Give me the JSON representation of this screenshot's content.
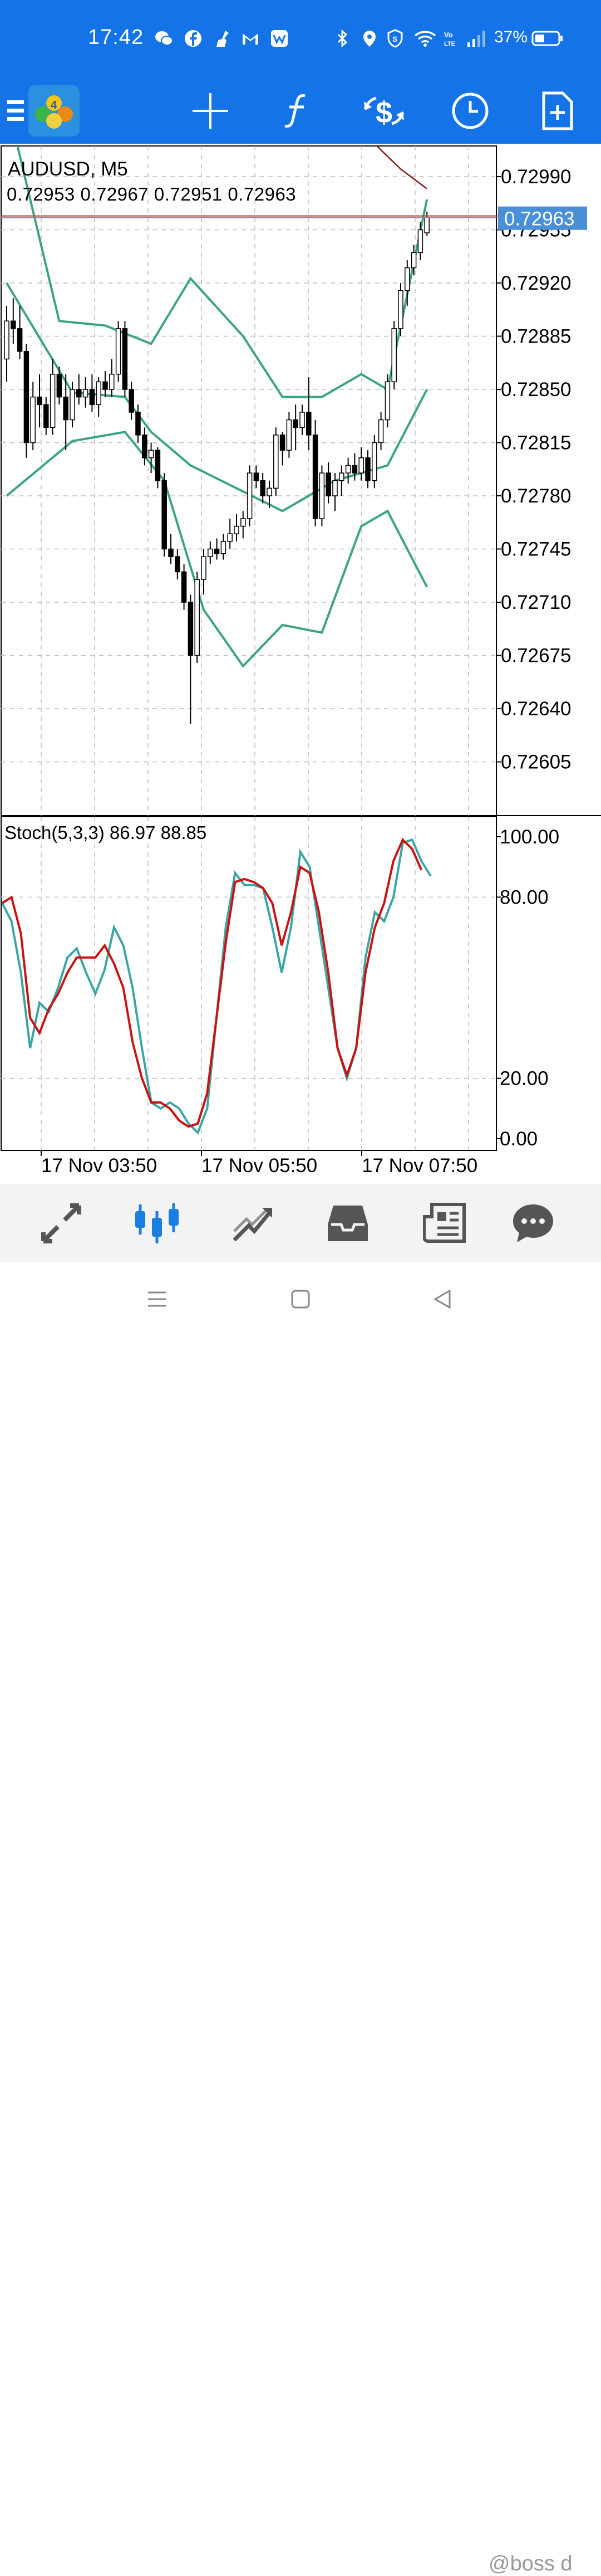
{
  "status_bar": {
    "time": "17:42",
    "battery": "37%",
    "left_icons": [
      "wechat-icon",
      "facebook-icon",
      "broom-icon",
      "gmail-icon",
      "app-w-icon"
    ],
    "right_icons": [
      "bluetooth-icon",
      "location-icon",
      "vpn-shield-icon",
      "wifi-icon",
      "volte-icon",
      "signal-icon",
      "battery-icon"
    ]
  },
  "toolbar": {
    "items": [
      "menu-icon",
      "app-logo-icon",
      "crosshair-icon",
      "indicators-icon",
      "symbol-change-icon",
      "timeframe-icon",
      "new-order-icon"
    ]
  },
  "chart": {
    "symbol_title": "AUDUSD, M5",
    "ohlc_text": "0.72953 0.72967 0.72951 0.72963",
    "current_price": "0.72963",
    "price_ticks": [
      "0.72990",
      "0.72955",
      "0.72920",
      "0.72885",
      "0.72850",
      "0.72815",
      "0.72780",
      "0.72745",
      "0.72710",
      "0.72675",
      "0.72640",
      "0.72605"
    ],
    "stoch_label": "Stoch(5,3,3) 86.97 88.85",
    "stoch_ticks": [
      "100.00",
      "80.00",
      "20.00",
      "0.00"
    ],
    "time_labels": [
      "17 Nov 03:50",
      "17 Nov 05:50",
      "17 Nov 07:50"
    ],
    "colors": {
      "bull": "#ffffff",
      "bear": "#000000",
      "bands": "#3aa57a",
      "ma": "#8b1a1a",
      "stoch_main": "#3aa5a5",
      "stoch_signal": "#cc1111",
      "price_tag": "#4a90d9"
    }
  },
  "chart_data": {
    "type": "candlestick",
    "title": "AUDUSD, M5",
    "ylim": [
      0.72575,
      0.7302
    ],
    "candles": [
      [
        0.7287,
        0.72905,
        0.72855,
        0.72895
      ],
      [
        0.72895,
        0.7291,
        0.7288,
        0.7289
      ],
      [
        0.7289,
        0.72905,
        0.7287,
        0.72875
      ],
      [
        0.72875,
        0.7288,
        0.72805,
        0.72815
      ],
      [
        0.72815,
        0.72855,
        0.7281,
        0.72845
      ],
      [
        0.72845,
        0.7286,
        0.72825,
        0.7284
      ],
      [
        0.7284,
        0.72845,
        0.7282,
        0.72825
      ],
      [
        0.72825,
        0.7287,
        0.7282,
        0.7286
      ],
      [
        0.7286,
        0.72865,
        0.7284,
        0.72845
      ],
      [
        0.72845,
        0.7286,
        0.7281,
        0.7283
      ],
      [
        0.7283,
        0.72855,
        0.72825,
        0.7285
      ],
      [
        0.7285,
        0.7286,
        0.7284,
        0.72845
      ],
      [
        0.72845,
        0.72858,
        0.72838,
        0.7285
      ],
      [
        0.7285,
        0.7286,
        0.72835,
        0.7284
      ],
      [
        0.7284,
        0.72858,
        0.72832,
        0.72855
      ],
      [
        0.72855,
        0.72862,
        0.72845,
        0.7285
      ],
      [
        0.7285,
        0.7287,
        0.72845,
        0.7286
      ],
      [
        0.7286,
        0.72895,
        0.72855,
        0.7289
      ],
      [
        0.7289,
        0.72895,
        0.72845,
        0.7285
      ],
      [
        0.7285,
        0.72855,
        0.7283,
        0.72835
      ],
      [
        0.72835,
        0.7284,
        0.72815,
        0.7282
      ],
      [
        0.7282,
        0.72825,
        0.728,
        0.72805
      ],
      [
        0.72805,
        0.72815,
        0.72795,
        0.7281
      ],
      [
        0.7281,
        0.72812,
        0.72785,
        0.7279
      ],
      [
        0.7279,
        0.72795,
        0.7274,
        0.72745
      ],
      [
        0.72745,
        0.72755,
        0.72735,
        0.7274
      ],
      [
        0.7274,
        0.72745,
        0.72725,
        0.7273
      ],
      [
        0.7273,
        0.72735,
        0.72705,
        0.7271
      ],
      [
        0.7271,
        0.72715,
        0.7263,
        0.72675
      ],
      [
        0.72675,
        0.7273,
        0.7267,
        0.72725
      ],
      [
        0.72725,
        0.72745,
        0.72715,
        0.7274
      ],
      [
        0.7274,
        0.7275,
        0.72735,
        0.72745
      ],
      [
        0.72745,
        0.72752,
        0.72738,
        0.72742
      ],
      [
        0.72742,
        0.72755,
        0.72738,
        0.7275
      ],
      [
        0.7275,
        0.72765,
        0.72745,
        0.72755
      ],
      [
        0.72755,
        0.72768,
        0.7275,
        0.7276
      ],
      [
        0.7276,
        0.7277,
        0.72752,
        0.72765
      ],
      [
        0.72765,
        0.728,
        0.7276,
        0.72795
      ],
      [
        0.72795,
        0.728,
        0.72785,
        0.7279
      ],
      [
        0.7279,
        0.72795,
        0.72775,
        0.7278
      ],
      [
        0.7278,
        0.7279,
        0.72772,
        0.72785
      ],
      [
        0.72785,
        0.72825,
        0.7278,
        0.7282
      ],
      [
        0.7282,
        0.72822,
        0.728,
        0.7281
      ],
      [
        0.7281,
        0.72835,
        0.72805,
        0.7283
      ],
      [
        0.7283,
        0.7284,
        0.7281,
        0.72825
      ],
      [
        0.72825,
        0.7284,
        0.7282,
        0.72835
      ],
      [
        0.72835,
        0.72858,
        0.7281,
        0.7282
      ],
      [
        0.7282,
        0.7283,
        0.7276,
        0.72765
      ],
      [
        0.72765,
        0.728,
        0.7276,
        0.72795
      ],
      [
        0.72795,
        0.72802,
        0.72775,
        0.7278
      ],
      [
        0.7278,
        0.72795,
        0.7277,
        0.7279
      ],
      [
        0.7279,
        0.728,
        0.7278,
        0.72795
      ],
      [
        0.72795,
        0.72805,
        0.72788,
        0.728
      ],
      [
        0.728,
        0.72808,
        0.7279,
        0.72795
      ],
      [
        0.72795,
        0.72812,
        0.7279,
        0.72805
      ],
      [
        0.72805,
        0.7281,
        0.72785,
        0.7279
      ],
      [
        0.7279,
        0.7282,
        0.72785,
        0.72815
      ],
      [
        0.72815,
        0.72835,
        0.7281,
        0.7283
      ],
      [
        0.7283,
        0.7286,
        0.72825,
        0.72855
      ],
      [
        0.72855,
        0.72895,
        0.7285,
        0.7289
      ],
      [
        0.7289,
        0.7292,
        0.72885,
        0.72915
      ],
      [
        0.72915,
        0.72935,
        0.72905,
        0.7293
      ],
      [
        0.7293,
        0.72945,
        0.72925,
        0.7294
      ],
      [
        0.7294,
        0.7296,
        0.72935,
        0.72955
      ],
      [
        0.72953,
        0.72967,
        0.72951,
        0.72963
      ]
    ],
    "bollinger": {
      "upper": [
        [
          0,
          0.7304
        ],
        [
          8,
          0.72895
        ],
        [
          15,
          0.72892
        ],
        [
          22,
          0.7288
        ],
        [
          28,
          0.72923
        ],
        [
          36,
          0.72885
        ],
        [
          42,
          0.72845
        ],
        [
          48,
          0.72845
        ],
        [
          54,
          0.7286
        ],
        [
          58,
          0.7285
        ],
        [
          64,
          0.72975
        ]
      ],
      "middle": [
        [
          0,
          0.7292
        ],
        [
          10,
          0.72848
        ],
        [
          18,
          0.72845
        ],
        [
          22,
          0.72822
        ],
        [
          28,
          0.728
        ],
        [
          35,
          0.72785
        ],
        [
          42,
          0.7277
        ],
        [
          50,
          0.7279
        ],
        [
          58,
          0.728
        ],
        [
          64,
          0.7285
        ]
      ],
      "lower": [
        [
          0,
          0.7278
        ],
        [
          10,
          0.72816
        ],
        [
          18,
          0.72822
        ],
        [
          24,
          0.7279
        ],
        [
          30,
          0.72705
        ],
        [
          36,
          0.72668
        ],
        [
          42,
          0.72695
        ],
        [
          48,
          0.7269
        ],
        [
          54,
          0.7276
        ],
        [
          58,
          0.7277
        ],
        [
          64,
          0.7272
        ]
      ]
    },
    "moving_average": [
      [
        54,
        0.7302
      ],
      [
        60,
        0.72995
      ],
      [
        64,
        0.72982
      ]
    ],
    "stochastic": {
      "name": "Stoch(5,3,3)",
      "ylim": [
        0,
        100
      ],
      "main": [
        78,
        72,
        55,
        30,
        45,
        42,
        50,
        60,
        63,
        55,
        48,
        56,
        70,
        64,
        50,
        30,
        12,
        10,
        12,
        10,
        5,
        2,
        10,
        40,
        70,
        88,
        84,
        84,
        83,
        70,
        55,
        70,
        95,
        90,
        70,
        50,
        30,
        20,
        30,
        60,
        75,
        72,
        80,
        98,
        99,
        92,
        87
      ],
      "signal": [
        78,
        80,
        68,
        40,
        35,
        43,
        48,
        55,
        60,
        60,
        60,
        64,
        58,
        50,
        32,
        20,
        12,
        12,
        10,
        6,
        4,
        5,
        15,
        40,
        65,
        85,
        86,
        85,
        83,
        78,
        64,
        75,
        90,
        88,
        75,
        55,
        30,
        21,
        30,
        55,
        70,
        78,
        92,
        99,
        96,
        89
      ]
    },
    "x_labels": [
      "17 Nov 03:50",
      "17 Nov 05:50",
      "17 Nov 07:50"
    ]
  },
  "bottom_nav": {
    "items": [
      "quotes-icon",
      "chart-icon",
      "trade-icon",
      "history-icon",
      "news-icon",
      "chat-icon"
    ],
    "active": 1
  },
  "system_nav": {
    "items": [
      "recent-apps-icon",
      "home-icon",
      "back-icon"
    ]
  },
  "watermark": "@boss d"
}
